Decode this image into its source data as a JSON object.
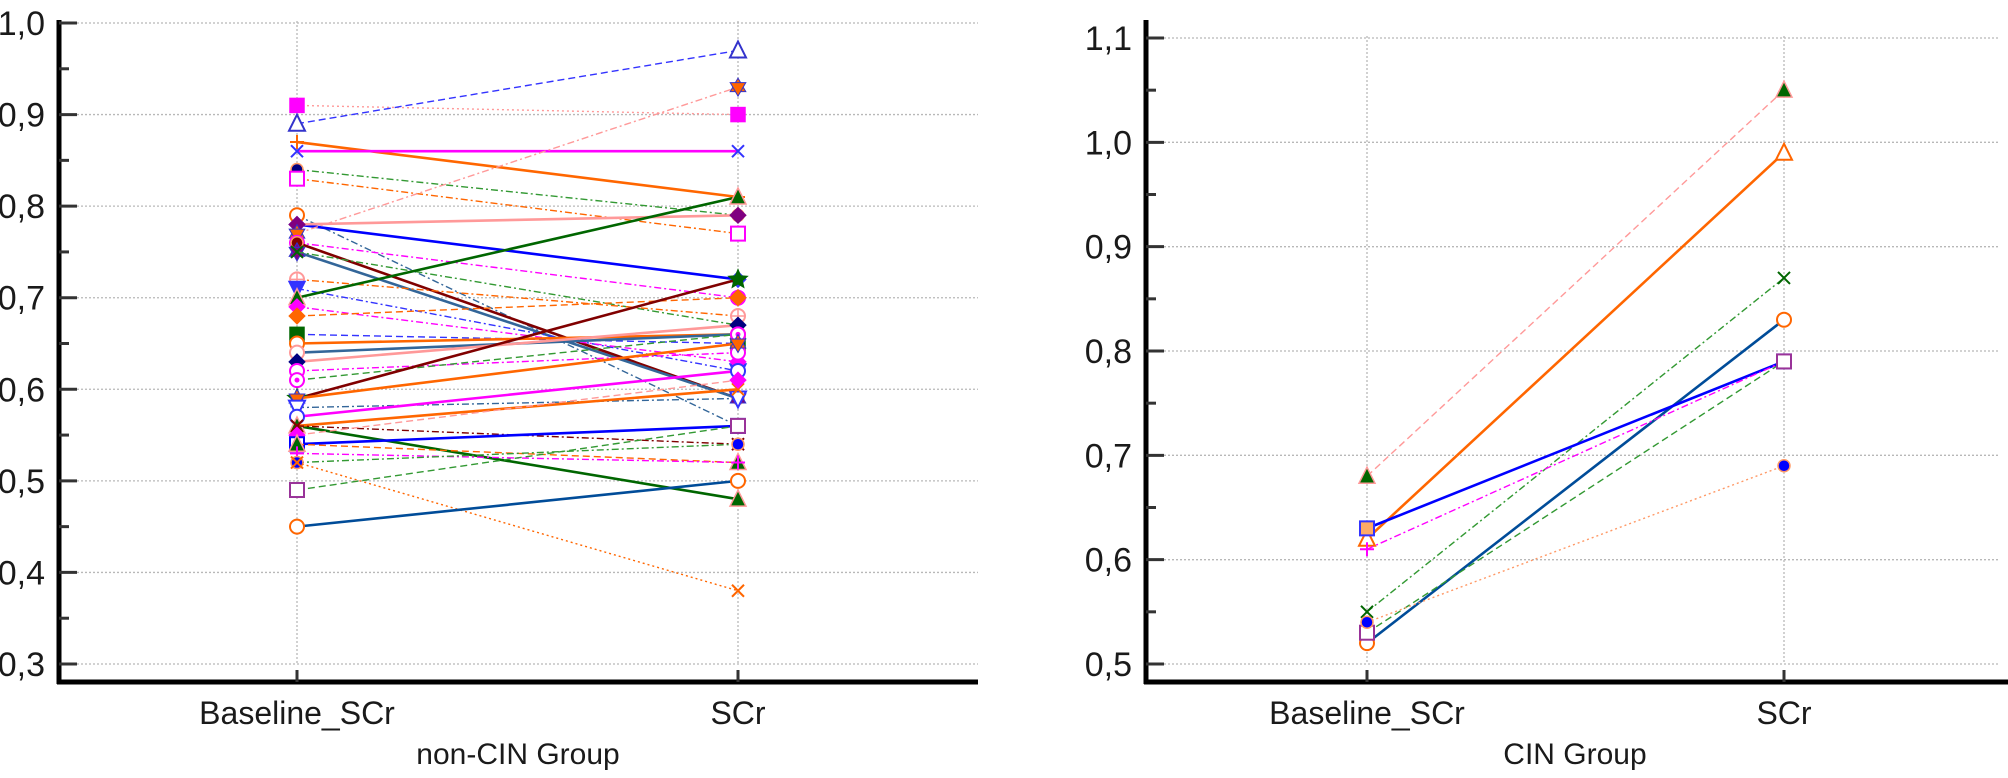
{
  "chart_data": [
    {
      "type": "line",
      "title": "",
      "xlabel": "non-CIN Group",
      "ylabel": "",
      "categories": [
        "Baseline_SCr",
        "SCr"
      ],
      "ylim": [
        0.3,
        1.0
      ],
      "yticks": [
        "0,3",
        "0,4",
        "0,5",
        "0,6",
        "0,7",
        "0,8",
        "0,9",
        "1,0"
      ],
      "grid": true,
      "series": [
        {
          "values": [
            0.91,
            0.9
          ],
          "color": "#ff00ff",
          "line": "#ff9999",
          "dash": "dot",
          "marker": "square-filled"
        },
        {
          "values": [
            0.89,
            0.97
          ],
          "color": "#3333cc",
          "line": "#3333ff",
          "dash": "dash",
          "marker": "triangle-open"
        },
        {
          "values": [
            0.87,
            0.81
          ],
          "color": "#ff6600",
          "line": "#ff6600",
          "dash": "solid",
          "marker": "plus"
        },
        {
          "values": [
            0.86,
            0.86
          ],
          "color": "#3333ff",
          "line": "#ff00ff",
          "dash": "solid",
          "marker": "x"
        },
        {
          "values": [
            0.84,
            0.79
          ],
          "color": "#000080",
          "line": "#339933",
          "dash": "dashdot",
          "marker": "circle-filled"
        },
        {
          "values": [
            0.83,
            0.77
          ],
          "color": "#ff00ff",
          "line": "#ff6600",
          "dash": "dashdot",
          "marker": "square-open"
        },
        {
          "values": [
            0.79,
            0.56
          ],
          "color": "#ff6600",
          "line": "#336699",
          "dash": "dashdot",
          "marker": "circle-open"
        },
        {
          "values": [
            0.78,
            0.72
          ],
          "color": "#3333ff",
          "line": "#0000ff",
          "dash": "solid",
          "marker": "diamond-filled"
        },
        {
          "values": [
            0.78,
            0.79
          ],
          "color": "#800080",
          "line": "#ff9999",
          "dash": "solid",
          "marker": "diamond-filled"
        },
        {
          "values": [
            0.77,
            0.93
          ],
          "color": "#ff6600",
          "line": "#ff9999",
          "dash": "dashdot",
          "marker": "hexagram"
        },
        {
          "values": [
            0.76,
            0.7
          ],
          "color": "#ff00ff",
          "line": "#ff00ff",
          "dash": "dashdot",
          "marker": "circle-open"
        },
        {
          "values": [
            0.76,
            0.59
          ],
          "color": "#800000",
          "line": "#800000",
          "dash": "solid",
          "marker": "circle-filled"
        },
        {
          "values": [
            0.75,
            0.59
          ],
          "color": "#800080",
          "line": "#336699",
          "dash": "solid",
          "marker": "hexagram"
        },
        {
          "values": [
            0.75,
            0.67
          ],
          "color": "#006600",
          "line": "#339933",
          "dash": "dashdot",
          "marker": "x"
        },
        {
          "values": [
            0.72,
            0.68
          ],
          "color": "#ff9999",
          "line": "#ff6600",
          "dash": "dashdot",
          "marker": "circle-cross"
        },
        {
          "values": [
            0.71,
            0.62
          ],
          "color": "#3333ff",
          "line": "#3333ff",
          "dash": "dashdot",
          "marker": "triangle-down-filled"
        },
        {
          "values": [
            0.7,
            0.81
          ],
          "color": "#006600",
          "line": "#006600",
          "dash": "solid",
          "marker": "triangle-filled"
        },
        {
          "values": [
            0.69,
            0.63
          ],
          "color": "#ff00ff",
          "line": "#ff00ff",
          "dash": "dashdot",
          "marker": "diamond-filled"
        },
        {
          "values": [
            0.68,
            0.7
          ],
          "color": "#ff6600",
          "line": "#ff6600",
          "dash": "dash",
          "marker": "diamond-filled"
        },
        {
          "values": [
            0.66,
            0.65
          ],
          "color": "#006600",
          "line": "#3333ff",
          "dash": "dash",
          "marker": "square-filled"
        },
        {
          "values": [
            0.65,
            0.66
          ],
          "color": "#ff6600",
          "line": "#ff6600",
          "dash": "solid",
          "marker": "circle-open"
        },
        {
          "values": [
            0.64,
            0.66
          ],
          "color": "#ff9999",
          "line": "#336699",
          "dash": "solid",
          "marker": "circle-open"
        },
        {
          "values": [
            0.63,
            0.67
          ],
          "color": "#000080",
          "line": "#ff9999",
          "dash": "solid",
          "marker": "diamond-filled"
        },
        {
          "values": [
            0.62,
            0.64
          ],
          "color": "#ff00ff",
          "line": "#ff00ff",
          "dash": "dashdot",
          "marker": "circle-open"
        },
        {
          "values": [
            0.61,
            0.66
          ],
          "color": "#ff00ff",
          "line": "#339933",
          "dash": "dash",
          "marker": "circle-dot"
        },
        {
          "values": [
            0.59,
            0.72
          ],
          "color": "#006600",
          "line": "#800000",
          "dash": "solid",
          "marker": "star-filled"
        },
        {
          "values": [
            0.59,
            0.65
          ],
          "color": "#ff6600",
          "line": "#ff6600",
          "dash": "solid",
          "marker": "hexagram"
        },
        {
          "values": [
            0.58,
            0.59
          ],
          "color": "#3333ff",
          "line": "#336699",
          "dash": "dashdot",
          "marker": "triangle-down-open"
        },
        {
          "values": [
            0.57,
            0.62
          ],
          "color": "#3333ff",
          "line": "#ff00ff",
          "dash": "solid",
          "marker": "circle-open"
        },
        {
          "values": [
            0.56,
            0.48
          ],
          "color": "#006600",
          "line": "#006600",
          "dash": "solid",
          "marker": "triangle-filled"
        },
        {
          "values": [
            0.56,
            0.6
          ],
          "color": "#ff6600",
          "line": "#ff6600",
          "dash": "solid",
          "marker": "x"
        },
        {
          "values": [
            0.56,
            0.54
          ],
          "color": "#800000",
          "line": "#800000",
          "dash": "dashdot",
          "marker": "x"
        },
        {
          "values": [
            0.55,
            0.61
          ],
          "color": "#ff00ff",
          "line": "#ff9999",
          "dash": "dash",
          "marker": "diamond-filled"
        },
        {
          "values": [
            0.54,
            0.56
          ],
          "color": "#0000ff",
          "line": "#0000ff",
          "dash": "solid",
          "marker": "square-open"
        },
        {
          "values": [
            0.54,
            0.52
          ],
          "color": "#006600",
          "line": "#ff6600",
          "dash": "dash",
          "marker": "triangle-filled"
        },
        {
          "values": [
            0.53,
            0.52
          ],
          "color": "#ff00ff",
          "line": "#ff00ff",
          "dash": "dashdot",
          "marker": "plus"
        },
        {
          "values": [
            0.52,
            0.54
          ],
          "color": "#0000ff",
          "line": "#339933",
          "dash": "dashdot",
          "marker": "circle-filled"
        },
        {
          "values": [
            0.52,
            0.38
          ],
          "color": "#ff6600",
          "line": "#ff6600",
          "dash": "dot",
          "marker": "x"
        },
        {
          "values": [
            0.49,
            0.56
          ],
          "color": "#993399",
          "line": "#339933",
          "dash": "dash",
          "marker": "square-open"
        },
        {
          "values": [
            0.45,
            0.5
          ],
          "color": "#ff6600",
          "line": "#004c99",
          "dash": "solid",
          "marker": "circle-open"
        }
      ]
    },
    {
      "type": "line",
      "title": "",
      "xlabel": "CIN Group",
      "ylabel": "",
      "categories": [
        "Baseline_SCr",
        "SCr"
      ],
      "ylim": [
        0.5,
        1.1
      ],
      "yticks": [
        "0,5",
        "0,6",
        "0,7",
        "0,8",
        "0,9",
        "1,0",
        "1,1"
      ],
      "grid": true,
      "series": [
        {
          "values": [
            0.68,
            1.05
          ],
          "color": "#006600",
          "line": "#ff9999",
          "dash": "dash",
          "marker": "triangle-filled"
        },
        {
          "values": [
            0.62,
            0.99
          ],
          "color": "#ff6600",
          "line": "#ff6600",
          "dash": "solid",
          "marker": "triangle-open"
        },
        {
          "values": [
            0.55,
            0.87
          ],
          "color": "#006600",
          "line": "#339933",
          "dash": "dashdot",
          "marker": "x"
        },
        {
          "values": [
            0.52,
            0.83
          ],
          "color": "#ff6600",
          "line": "#004c99",
          "dash": "solid",
          "marker": "circle-open"
        },
        {
          "values": [
            0.63,
            0.79
          ],
          "color": "#3333ff",
          "line": "#0000ff",
          "dash": "solid",
          "marker": "square-orange"
        },
        {
          "values": [
            0.61,
            0.79
          ],
          "color": "#ff00ff",
          "line": "#ff00ff",
          "dash": "dashdot",
          "marker": "plus"
        },
        {
          "values": [
            0.53,
            0.79
          ],
          "color": "#993399",
          "line": "#339933",
          "dash": "dash",
          "marker": "square-open"
        },
        {
          "values": [
            0.54,
            0.69
          ],
          "color": "#0000ff",
          "line": "#ff9966",
          "dash": "dot",
          "marker": "circle-filled"
        }
      ]
    }
  ]
}
